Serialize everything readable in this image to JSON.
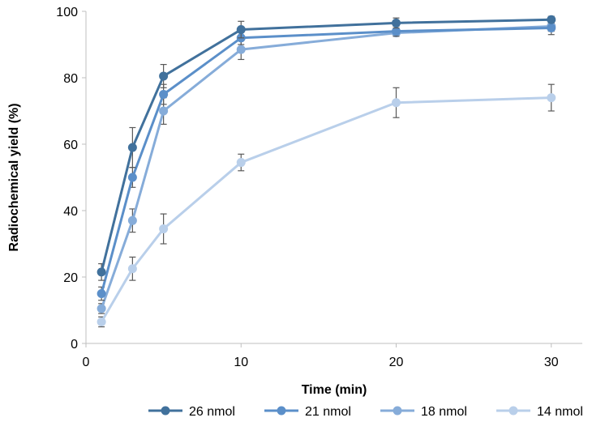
{
  "chart_data": {
    "type": "line",
    "title": "",
    "xlabel": "Time (min)",
    "ylabel": "Radiochemical yield (%)",
    "xlim": [
      0,
      32
    ],
    "ylim": [
      0,
      100
    ],
    "xticks": [
      0,
      10,
      20,
      30
    ],
    "yticks": [
      0,
      20,
      40,
      60,
      80,
      100
    ],
    "grid": false,
    "legend_position": "bottom",
    "x": [
      1,
      3,
      5,
      10,
      20,
      30
    ],
    "series": [
      {
        "name": "26 nmol",
        "color": "#41719c",
        "values": [
          21.5,
          59,
          80.5,
          94.5,
          96.5,
          97.5
        ],
        "errors": [
          2.5,
          6,
          3.5,
          2.5,
          1.5,
          1
        ]
      },
      {
        "name": "21 nmol",
        "color": "#5b8fc9",
        "values": [
          15,
          50,
          75,
          92,
          94,
          95
        ],
        "errors": [
          2,
          3,
          3,
          2,
          1.5,
          2
        ]
      },
      {
        "name": "18 nmol",
        "color": "#86acd9",
        "values": [
          10.5,
          37,
          70,
          88.5,
          93.5,
          95.5
        ],
        "errors": [
          1.5,
          3.5,
          4,
          3,
          1,
          1.5
        ]
      },
      {
        "name": "14 nmol",
        "color": "#b9cfea",
        "values": [
          6.5,
          22.5,
          34.5,
          54.5,
          72.5,
          74
        ],
        "errors": [
          1.5,
          3.5,
          4.5,
          2.5,
          4.5,
          4
        ]
      }
    ]
  }
}
